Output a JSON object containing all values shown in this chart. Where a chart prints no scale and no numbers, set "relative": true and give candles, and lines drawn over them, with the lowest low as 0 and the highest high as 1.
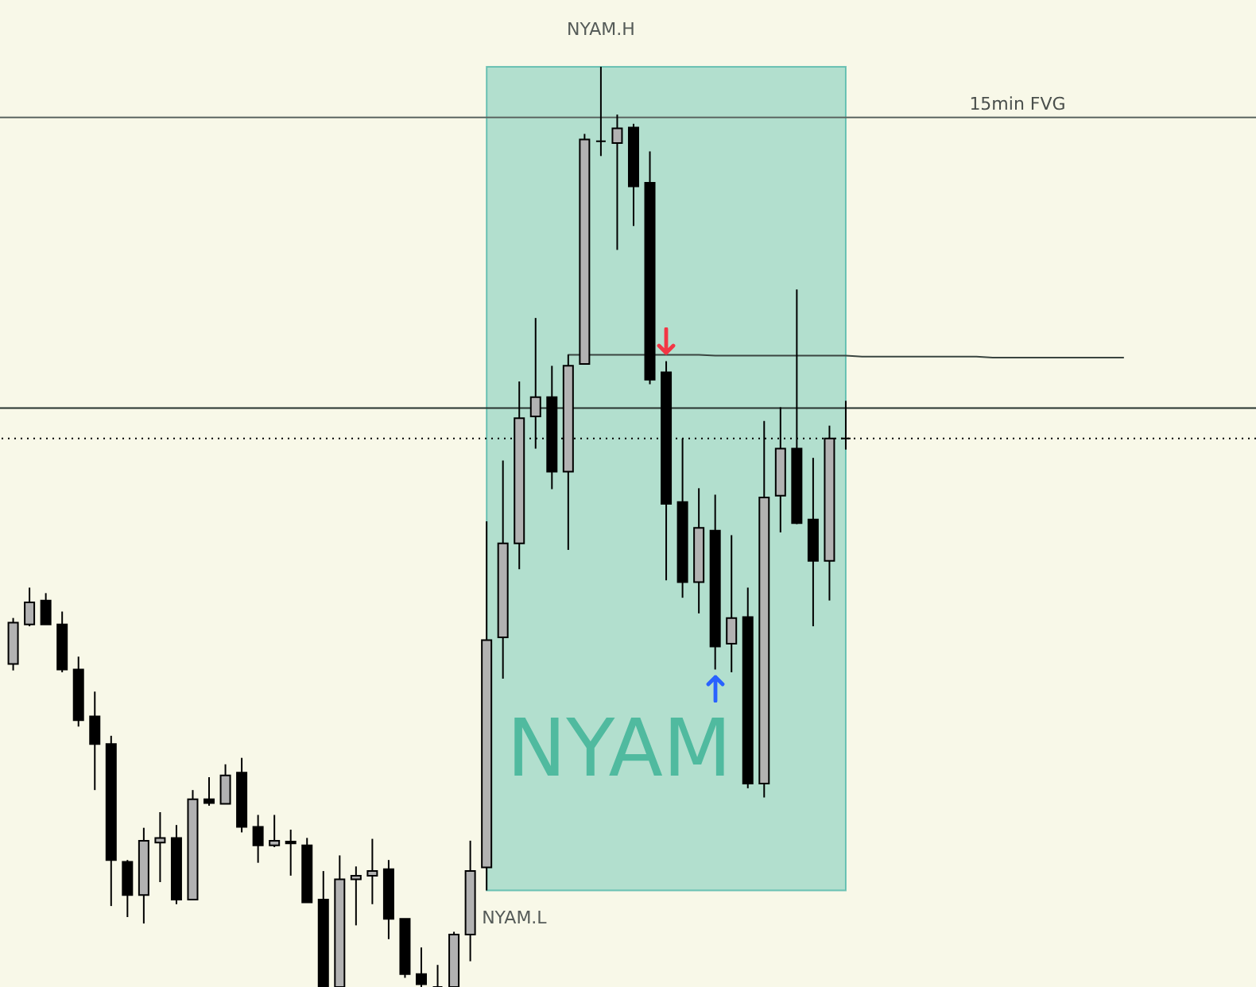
{
  "chart_data": {
    "type": "candlestick",
    "relative": true,
    "categories": [
      null,
      null,
      null,
      null,
      null,
      null,
      null,
      null,
      null,
      null,
      null,
      null,
      null,
      null,
      null,
      null,
      null,
      null,
      null,
      null,
      null,
      null,
      null,
      null,
      null,
      null,
      null,
      null,
      null,
      null,
      null,
      null,
      null,
      null,
      null,
      null,
      null,
      null,
      null,
      null,
      null,
      null,
      null,
      null,
      null,
      null,
      null,
      null,
      null,
      null,
      null,
      null,
      null,
      null,
      null,
      null,
      null,
      null,
      null,
      null,
      null,
      null,
      null,
      null,
      null,
      null,
      null,
      null,
      null,
      null,
      null,
      null,
      null,
      null,
      null,
      null
    ],
    "ohlc": [
      [
        0.351,
        0.401,
        0.344,
        0.396
      ],
      [
        0.394,
        0.434,
        0.392,
        0.418
      ],
      [
        0.42,
        0.428,
        0.394,
        0.394
      ],
      [
        0.394,
        0.408,
        0.342,
        0.345
      ],
      [
        0.345,
        0.359,
        0.283,
        0.29
      ],
      [
        0.294,
        0.321,
        0.214,
        0.264
      ],
      [
        0.264,
        0.273,
        0.088,
        0.138
      ],
      [
        0.136,
        0.138,
        0.076,
        0.1
      ],
      [
        0.1,
        0.173,
        0.069,
        0.159
      ],
      [
        0.157,
        0.19,
        0.114,
        0.162
      ],
      [
        0.162,
        0.176,
        0.09,
        0.095
      ],
      [
        0.095,
        0.214,
        0.095,
        0.204
      ],
      [
        0.204,
        0.228,
        0.197,
        0.2
      ],
      [
        0.199,
        0.242,
        0.199,
        0.23
      ],
      [
        0.233,
        0.249,
        0.168,
        0.174
      ],
      [
        0.174,
        0.187,
        0.135,
        0.154
      ],
      [
        0.154,
        0.187,
        0.152,
        0.159
      ],
      [
        0.158,
        0.171,
        0.121,
        0.156
      ],
      [
        0.154,
        0.162,
        0.092,
        0.092
      ],
      [
        0.095,
        0.126,
        0,
        0
      ],
      [
        0,
        0.143,
        0,
        0.117
      ],
      [
        0.117,
        0.131,
        0.067,
        0.121
      ],
      [
        0.121,
        0.161,
        0.09,
        0.126
      ],
      [
        0.128,
        0.138,
        0.052,
        0.074
      ],
      [
        0.074,
        0.074,
        0.01,
        0.014
      ],
      [
        0.014,
        0.043,
        0,
        0.003
      ],
      [
        0,
        0.024,
        0,
        0
      ],
      [
        0,
        0.06,
        0,
        0.057
      ],
      [
        0.057,
        0.159,
        0.028,
        0.126
      ],
      [
        0.13,
        0.506,
        0.105,
        0.377
      ],
      [
        0.38,
        0.572,
        0.335,
        0.482
      ],
      [
        0.482,
        0.658,
        0.454,
        0.618
      ],
      [
        0.62,
        0.727,
        0.585,
        0.641
      ],
      [
        0.641,
        0.675,
        0.541,
        0.56
      ],
      [
        0.56,
        0.687,
        0.475,
        0.675
      ],
      [
        0.677,
        0.927,
        0.677,
        0.921
      ],
      [
        0.919,
        1,
        0.903,
        0.919
      ],
      [
        0.917,
        0.948,
        0.801,
        0.933
      ],
      [
        0.934,
        0.938,
        0.827,
        0.87
      ],
      [
        0.874,
        0.908,
        0.655,
        0.66
      ],
      [
        0.668,
        0.68,
        0.442,
        0.525
      ],
      [
        0.527,
        0.596,
        0.423,
        0.44
      ],
      [
        0.44,
        0.542,
        0.406,
        0.499
      ],
      [
        0.496,
        0.535,
        0.345,
        0.37
      ],
      [
        0.373,
        0.491,
        0.342,
        0.401
      ],
      [
        0.402,
        0.434,
        0.216,
        0.221
      ],
      [
        0.221,
        0.615,
        0.206,
        0.532
      ],
      [
        0.534,
        0.63,
        0.494,
        0.585
      ],
      [
        0.585,
        0.758,
        0.503,
        0.504
      ],
      [
        0.508,
        0.575,
        0.392,
        0.463
      ],
      [
        0.463,
        0.61,
        0.42,
        0.596
      ],
      [
        0.596,
        0.637,
        0.584,
        0.596
      ],
      null,
      null,
      null,
      null,
      null,
      null,
      null,
      null,
      null,
      null,
      null,
      null,
      null,
      null,
      null,
      null,
      null,
      null,
      null,
      null,
      null,
      null,
      null,
      null
    ],
    "colors": [
      "#b2b2b2",
      "#b2b2b2",
      "#000000",
      "#000000",
      "#000000",
      "#000000",
      "#000000",
      "#000000",
      "#b2b2b2",
      "#b2b2b2",
      "#000000",
      "#b2b2b2",
      "#000000",
      "#b2b2b2",
      "#000000",
      "#000000",
      "#b2b2b2",
      "#000000",
      "#000000",
      "#000000",
      "#b2b2b2",
      "#b2b2b2",
      "#b2b2b2",
      "#000000",
      "#000000",
      "#000000",
      "#000000",
      "#b2b2b2",
      "#b2b2b2",
      "#b2b2b2",
      "#b2b2b2",
      "#b2b2b2",
      "#b2b2b2",
      "#000000",
      "#b2b2b2",
      "#b2b2b2",
      "#000000",
      "#b2b2b2",
      "#000000",
      "#000000",
      "#000000",
      "#000000",
      "#b2b2b2",
      "#000000",
      "#b2b2b2",
      "#000000",
      "#b2b2b2",
      "#b2b2b2",
      "#000000",
      "#000000",
      "#b2b2b2",
      "#000000",
      null,
      null,
      null,
      null,
      null,
      null,
      null,
      null,
      null,
      null,
      null,
      null,
      null,
      null,
      null,
      null,
      null,
      null,
      null,
      null,
      null,
      null,
      null,
      null
    ],
    "series": [
      {
        "type": "line",
        "color": "#3a4540",
        "values": [
          null,
          null,
          null,
          null,
          null,
          null,
          null,
          null,
          null,
          null,
          null,
          null,
          null,
          null,
          null,
          null,
          null,
          null,
          null,
          null,
          null,
          null,
          null,
          null,
          null,
          null,
          null,
          null,
          null,
          null,
          null,
          null,
          null,
          null,
          0.687,
          0.687,
          0.687,
          0.687,
          0.687,
          0.687,
          0.687,
          0.687,
          0.687,
          0.686,
          0.686,
          0.686,
          0.686,
          0.686,
          0.686,
          0.686,
          0.686,
          0.686,
          0.685,
          0.685,
          0.685,
          0.685,
          0.685,
          0.685,
          0.685,
          0.685,
          0.684,
          0.684,
          0.684,
          0.684,
          0.684,
          0.684,
          0.684,
          0.684,
          0.684,
          null,
          null,
          null,
          null,
          null,
          null,
          null
        ]
      }
    ],
    "ref_lines": [
      {
        "axis": "y",
        "value": 0.945,
        "label": "15min FVG",
        "color": "#5b6661"
      },
      {
        "axis": "y",
        "value": 0.629,
        "color": "#26332e"
      },
      {
        "axis": "y",
        "value": 0.596,
        "color": "#000000",
        "line_style": "dotted"
      }
    ],
    "bands": [
      {
        "axis": "y",
        "from": 0.105,
        "to": 1,
        "label": "NYAM",
        "color": "#b2dfce"
      }
    ],
    "annotations": [
      {
        "text": "NYAM.H",
        "y": 1
      },
      {
        "text": "NYAM.L",
        "y": 0.105
      }
    ]
  }
}
